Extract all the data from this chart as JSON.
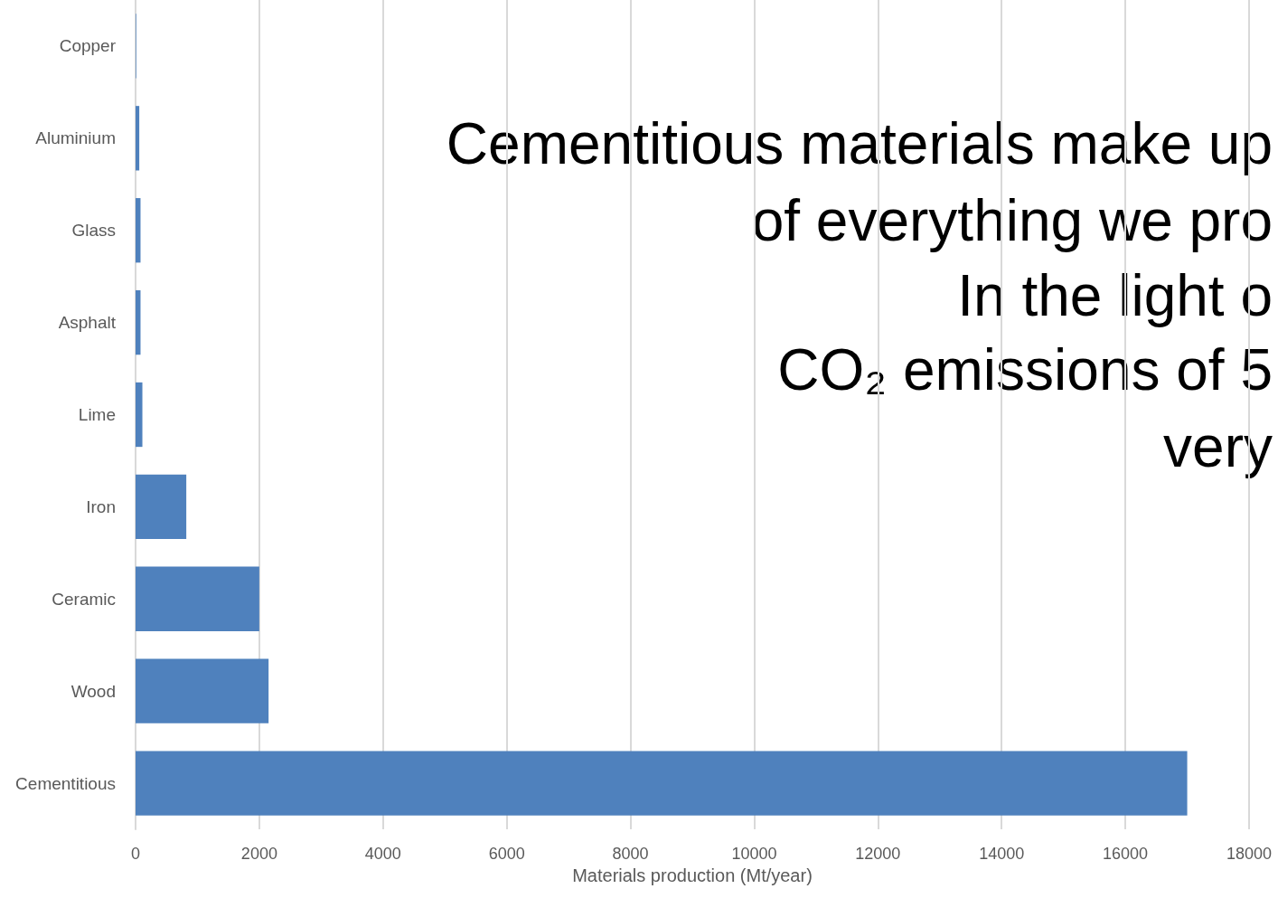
{
  "chart_data": {
    "type": "bar",
    "orientation": "horizontal",
    "categories": [
      "Copper",
      "Aluminium",
      "Glass",
      "Asphalt",
      "Lime",
      "Iron",
      "Ceramic",
      "Wood",
      "Cementitious"
    ],
    "values": [
      10,
      60,
      80,
      80,
      110,
      820,
      2000,
      2150,
      17000
    ],
    "color": "#4f81bd",
    "xlabel": "Materials production (Mt/year)",
    "xlim": [
      0,
      18000
    ],
    "xticks": [
      0,
      2000,
      4000,
      6000,
      8000,
      10000,
      12000,
      14000,
      16000,
      18000
    ],
    "grid": "x",
    "annotations": [
      "Cementitious materials make up",
      "of everything we pro",
      "In the light o",
      "CO₂ emissions of 5",
      "very"
    ]
  }
}
